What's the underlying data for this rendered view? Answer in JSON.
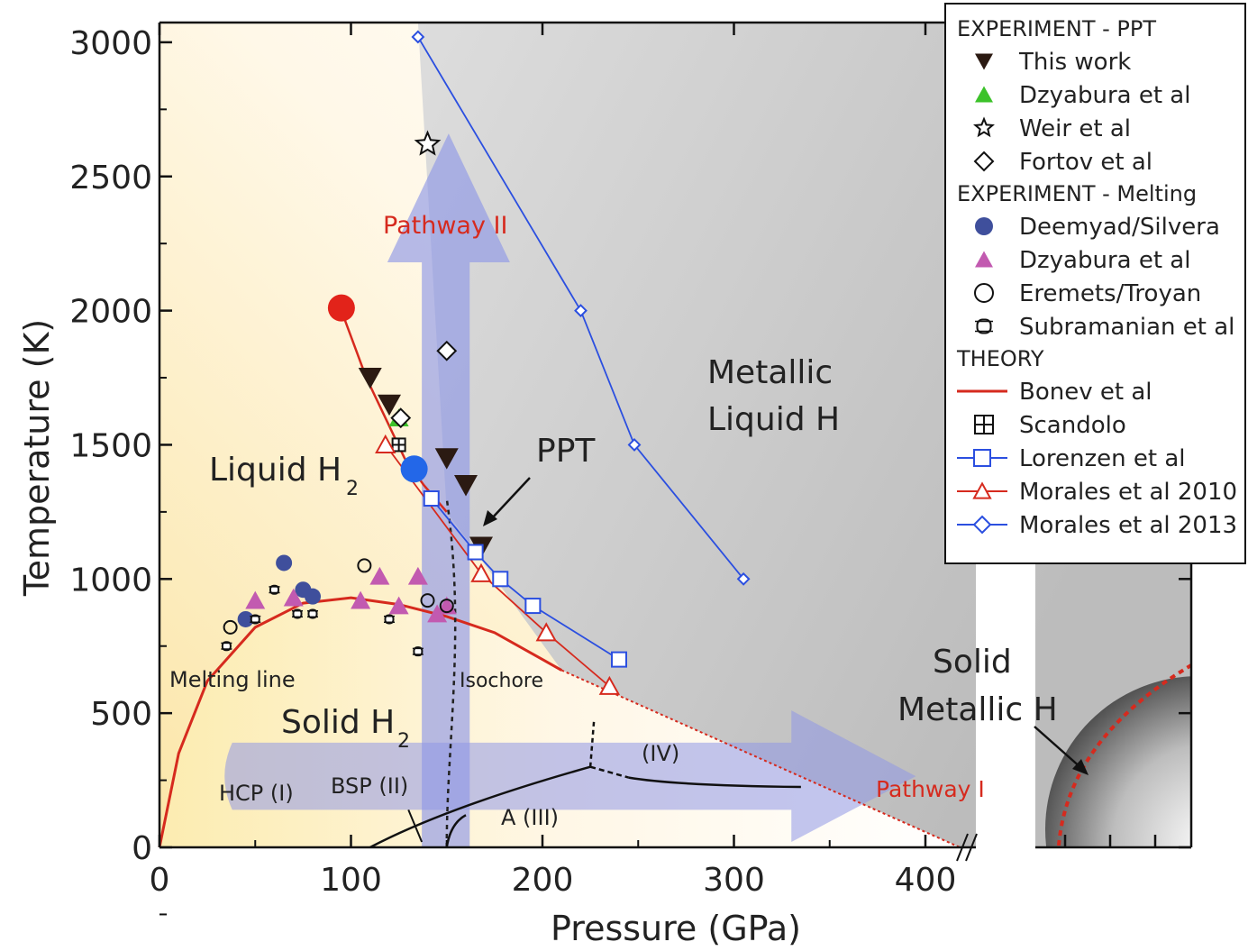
{
  "chart_data": {
    "type": "scatter",
    "title": "",
    "xlabel": "Pressure (GPa)",
    "ylabel": "Temperature (K)",
    "xlim": [
      0,
      430
    ],
    "ylim": [
      0,
      3000
    ],
    "xticks": [
      0,
      100,
      200,
      300,
      400
    ],
    "yticks": [
      0,
      500,
      1000,
      1500,
      2000,
      2500,
      3000
    ],
    "axis_break": "after 400 GPa",
    "legend": {
      "placement": "top-right",
      "groups": [
        {
          "heading": "EXPERIMENT - PPT",
          "entries": [
            {
              "label": "This work",
              "marker": "triangle-down-filled",
              "color": "#2b1a12"
            },
            {
              "label": "Dzyabura et al",
              "marker": "triangle-filled",
              "color": "#3cc22a"
            },
            {
              "label": "Weir et al",
              "marker": "star-open",
              "color": "#111111"
            },
            {
              "label": "Fortov et al",
              "marker": "diamond-open",
              "color": "#111111"
            }
          ]
        },
        {
          "heading": "EXPERIMENT - Melting",
          "entries": [
            {
              "label": "Deemyad/Silvera",
              "marker": "circle-filled",
              "color": "#3f4f9c"
            },
            {
              "label": "Dzyabura et al",
              "marker": "triangle-filled",
              "color": "#c25ab0"
            },
            {
              "label": "Eremets/Troyan",
              "marker": "circle-open",
              "color": "#111111"
            },
            {
              "label": "Subramanian et al",
              "marker": "ring-square",
              "color": "#111111"
            }
          ]
        },
        {
          "heading": "THEORY",
          "entries": [
            {
              "label": "Bonev et al",
              "marker": "line",
              "color": "#d62a1e"
            },
            {
              "label": "Scandolo",
              "marker": "boxplus",
              "color": "#111111"
            },
            {
              "label": "Lorenzen et al",
              "marker": "square-open-line",
              "color": "#2b4fe0"
            },
            {
              "label": "Morales et al 2010",
              "marker": "triangle-open-line",
              "color": "#d62a1e"
            },
            {
              "label": "Morales et al 2013",
              "marker": "diamond-open-line",
              "color": "#2b4fe0"
            }
          ]
        }
      ]
    },
    "series": [
      {
        "name": "This work",
        "x": [
          110,
          120,
          150,
          160,
          168
        ],
        "y": [
          1750,
          1650,
          1450,
          1350,
          1120
        ]
      },
      {
        "name": "Dzyabura et al",
        "x": [
          125
        ],
        "y": [
          1600
        ]
      },
      {
        "name": "Weir et al",
        "x": [
          140
        ],
        "y": [
          2620
        ]
      },
      {
        "name": "Fortov et al",
        "x": [
          150,
          126
        ],
        "y": [
          1850,
          1600
        ]
      },
      {
        "name": "Deemyad/Silvera",
        "x": [
          45,
          65,
          75,
          80
        ],
        "y": [
          850,
          1060,
          960,
          935
        ]
      },
      {
        "name": "Dzyabura et al",
        "x": [
          50,
          70,
          105,
          115,
          125,
          135,
          145,
          150
        ],
        "y": [
          920,
          930,
          920,
          1010,
          900,
          1010,
          870,
          900
        ]
      },
      {
        "name": "Eremets/Troyan",
        "x": [
          37,
          107,
          140,
          150
        ],
        "y": [
          820,
          1050,
          920,
          900
        ]
      },
      {
        "name": "Subramanian et al",
        "x": [
          35,
          50,
          60,
          72,
          80,
          120,
          135
        ],
        "y": [
          750,
          850,
          960,
          870,
          870,
          850,
          730
        ]
      },
      {
        "name": "Bonev et al",
        "x": [
          0,
          10,
          25,
          50,
          75,
          100,
          125,
          150,
          175,
          200,
          210
        ],
        "y": [
          0,
          350,
          620,
          820,
          910,
          930,
          905,
          860,
          800,
          700,
          660
        ]
      },
      {
        "name": "Bonev et al",
        "x": [
          95,
          108,
          118,
          128,
          138,
          150
        ],
        "y": [
          2000,
          1750,
          1600,
          1450,
          1350,
          1250
        ]
      },
      {
        "name": "Scandolo",
        "x": [
          125
        ],
        "y": [
          1500
        ]
      },
      {
        "name": "Lorenzen et al",
        "x": [
          142,
          165,
          178,
          195,
          240
        ],
        "y": [
          1300,
          1100,
          1000,
          900,
          700
        ]
      },
      {
        "name": "Morales et al 2010",
        "x": [
          118,
          168,
          202,
          235
        ],
        "y": [
          1500,
          1020,
          800,
          600
        ]
      },
      {
        "name": "Morales et al 2013",
        "x": [
          135,
          220,
          248,
          305
        ],
        "y": [
          3020,
          2000,
          1500,
          1000
        ]
      }
    ],
    "special_points": [
      {
        "color": "#e2231a",
        "x": 95,
        "y": 2010
      },
      {
        "color": "#2367e8",
        "x": 133,
        "y": 1410
      }
    ],
    "annotations": {
      "metallic_liquid": [
        "Metallic",
        "Liquid H"
      ],
      "liquid_h2": "Liquid H",
      "liquid_h2_sub": "2",
      "solid_h2": "Solid H",
      "solid_h2_sub": "2",
      "ppt": "PPT",
      "solid_metallic": [
        "Solid",
        "Metallic H"
      ],
      "pathway_1": "Pathway I",
      "pathway_2": "Pathway II",
      "melting_line": "Melting line",
      "isochore": "Isochore",
      "hcp": "HCP (I)",
      "bsp": "BSP (II)",
      "a3": "A (III)",
      "iv": "(IV)"
    },
    "colors": {
      "axis": "#111111",
      "bonev": "#d62a1e",
      "lorenzen": "#2b4fe0",
      "morales2013": "#2b4fe0",
      "morales2010": "#d62a1e",
      "pathway_arrow": "#8f98e6",
      "annot_red": "#d62a1e"
    }
  }
}
